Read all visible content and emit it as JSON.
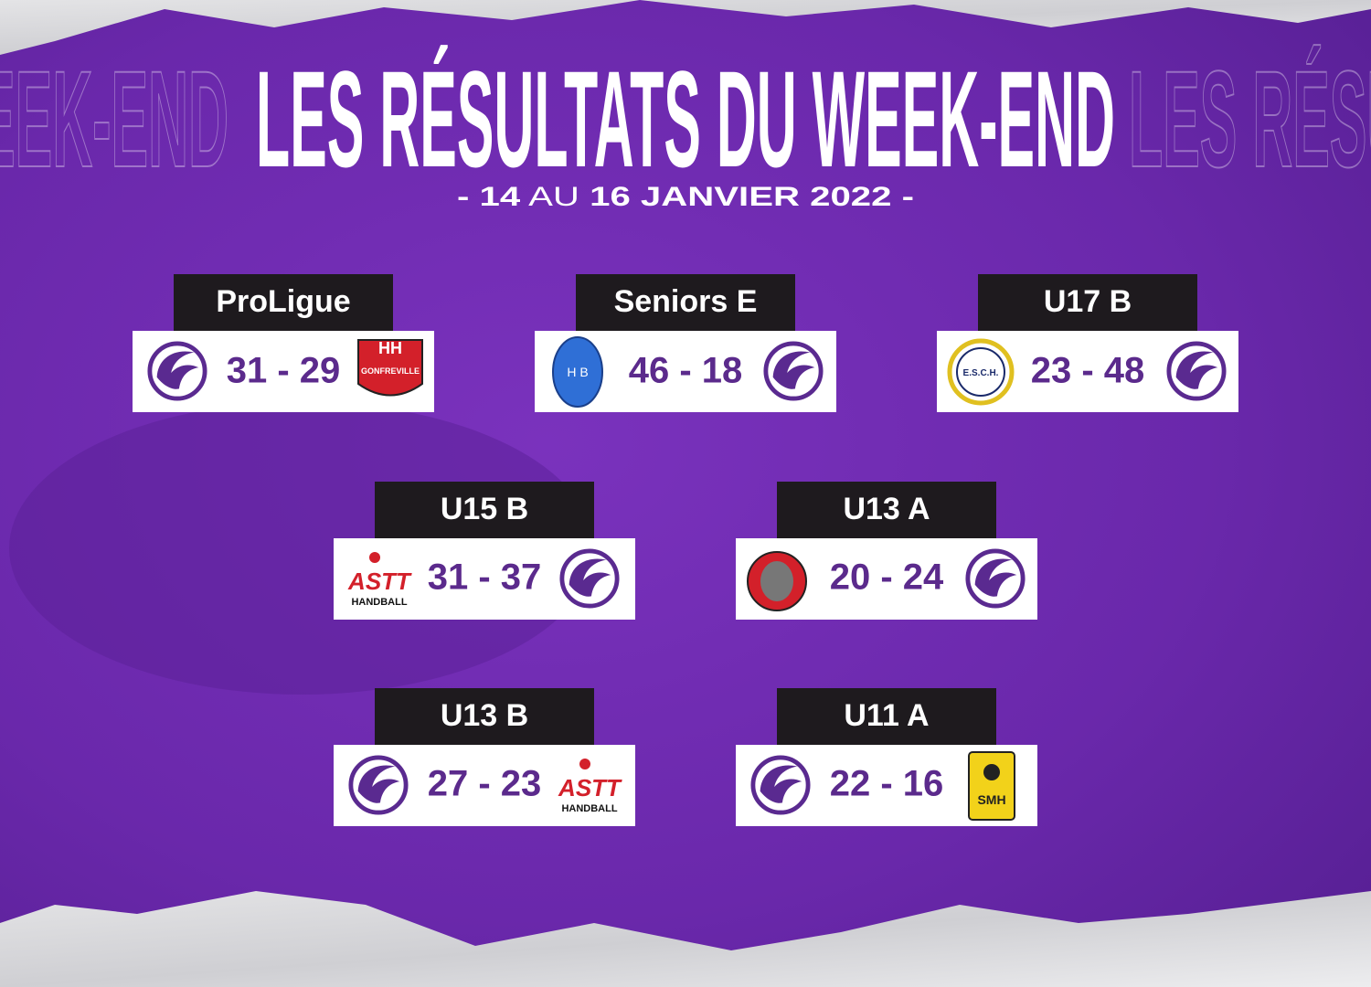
{
  "title": "LES RÉSULTATS DU WEEK-END",
  "subtitle": {
    "start": "- 14",
    "middle": "AU",
    "end": "16 JANVIER 2022 -"
  },
  "matches": [
    {
      "category": "ProLigue",
      "score": "31 - 29"
    },
    {
      "category": "Seniors E",
      "score": "46 - 18"
    },
    {
      "category": "U17 B",
      "score": "23 - 48"
    },
    {
      "category": "U15 B",
      "score": "31 - 37"
    },
    {
      "category": "U13 A",
      "score": "20 - 24"
    },
    {
      "category": "U13 B",
      "score": "27 - 23"
    },
    {
      "category": "U11 A",
      "score": "22 - 16"
    }
  ],
  "logos": {
    "gonfreville": "GONFREVILLE",
    "astt": "HANDBALL",
    "esch": "E.S.C.H.",
    "smh": "SMH"
  }
}
